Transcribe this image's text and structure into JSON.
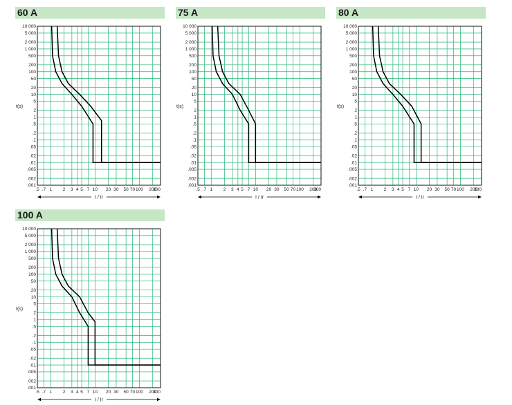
{
  "chart_data": [
    {
      "type": "line",
      "title": "60 A",
      "xlabel": "I / Ir",
      "ylabel": "t(s)",
      "x_scale": "log",
      "y_scale": "log",
      "xlim": [
        0.5,
        300
      ],
      "ylim": [
        0.001,
        10000
      ],
      "x_tick_labels": [
        ".5",
        ".7",
        "1",
        "2",
        "3",
        "4",
        "5",
        "7",
        "10",
        "20",
        "30",
        "50",
        "70",
        "100",
        "200",
        "300"
      ],
      "y_tick_labels": [
        "10 000",
        "5 000",
        "2 000",
        "1 000",
        "500",
        "200",
        "100",
        "50",
        "20",
        "10",
        "5",
        "2",
        "1",
        ".5",
        ".2",
        ".1",
        ".05",
        ".02",
        ".01",
        ".005",
        ".002",
        ".001"
      ],
      "grid": true,
      "series": [
        {
          "values": [
            [
              1.05,
              10000
            ],
            [
              1.1,
              500
            ],
            [
              1.3,
              100
            ],
            [
              1.8,
              30
            ],
            [
              3,
              10
            ],
            [
              5,
              3
            ],
            [
              9,
              0.5
            ],
            [
              9,
              0.01
            ],
            [
              300,
              0.01
            ]
          ]
        },
        {
          "values": [
            [
              1.4,
              10000
            ],
            [
              1.5,
              500
            ],
            [
              1.8,
              100
            ],
            [
              2.5,
              30
            ],
            [
              4.5,
              10
            ],
            [
              8,
              3
            ],
            [
              14,
              0.7
            ],
            [
              14,
              0.01
            ],
            [
              300,
              0.01
            ]
          ]
        }
      ]
    },
    {
      "type": "line",
      "title": "75 A",
      "xlabel": "I / Ir",
      "ylabel": "t(s)",
      "x_scale": "log",
      "y_scale": "log",
      "xlim": [
        0.5,
        300
      ],
      "ylim": [
        0.001,
        10000
      ],
      "x_tick_labels": [
        ".5",
        ".7",
        "1",
        "2",
        "3",
        "4",
        "5",
        "7",
        "10",
        "20",
        "30",
        "50",
        "70",
        "100",
        "200",
        "300"
      ],
      "y_tick_labels": [
        "10 000",
        "5 000",
        "2 000",
        "1 000",
        "500",
        "200",
        "100",
        "50",
        "20",
        "10",
        "5",
        "2",
        "1",
        ".5",
        ".2",
        ".1",
        ".05",
        ".02",
        ".01",
        ".005",
        ".002",
        ".001"
      ],
      "grid": true,
      "series": [
        {
          "values": [
            [
              1.05,
              10000
            ],
            [
              1.1,
              500
            ],
            [
              1.3,
              100
            ],
            [
              1.8,
              30
            ],
            [
              3,
              10
            ],
            [
              4.5,
              2
            ],
            [
              7,
              0.5
            ],
            [
              7,
              0.01
            ],
            [
              300,
              0.01
            ]
          ]
        },
        {
          "values": [
            [
              1.4,
              10000
            ],
            [
              1.5,
              500
            ],
            [
              1.8,
              100
            ],
            [
              2.5,
              30
            ],
            [
              4.5,
              10
            ],
            [
              7,
              2
            ],
            [
              10,
              0.5
            ],
            [
              10,
              0.01
            ],
            [
              300,
              0.01
            ]
          ]
        }
      ]
    },
    {
      "type": "line",
      "title": "80 A",
      "xlabel": "I / Ir",
      "ylabel": "t(s)",
      "x_scale": "log",
      "y_scale": "log",
      "xlim": [
        0.5,
        300
      ],
      "ylim": [
        0.001,
        10000
      ],
      "x_tick_labels": [
        ".5",
        ".7",
        "1",
        "2",
        "3",
        "4",
        "5",
        "7",
        "10",
        "20",
        "30",
        "50",
        "70",
        "100",
        "200",
        "300"
      ],
      "y_tick_labels": [
        "10 000",
        "5 000",
        "2 000",
        "1 000",
        "500",
        "200",
        "100",
        "50",
        "20",
        "10",
        "5",
        "2",
        "1",
        ".5",
        ".2",
        ".1",
        ".05",
        ".02",
        ".01",
        ".005",
        ".002",
        ".001"
      ],
      "grid": true,
      "series": [
        {
          "values": [
            [
              1.05,
              10000
            ],
            [
              1.1,
              500
            ],
            [
              1.3,
              100
            ],
            [
              1.8,
              30
            ],
            [
              3,
              10
            ],
            [
              5,
              3
            ],
            [
              9,
              0.5
            ],
            [
              9,
              0.01
            ],
            [
              300,
              0.01
            ]
          ]
        },
        {
          "values": [
            [
              1.4,
              10000
            ],
            [
              1.5,
              500
            ],
            [
              1.8,
              100
            ],
            [
              2.5,
              30
            ],
            [
              4.5,
              10
            ],
            [
              8,
              3
            ],
            [
              13,
              0.5
            ],
            [
              13,
              0.01
            ],
            [
              300,
              0.01
            ]
          ]
        }
      ]
    },
    {
      "type": "line",
      "title": "100 A",
      "xlabel": "I / Ir",
      "ylabel": "t(s)",
      "x_scale": "log",
      "y_scale": "log",
      "xlim": [
        0.5,
        300
      ],
      "ylim": [
        0.001,
        10000
      ],
      "x_tick_labels": [
        ".5",
        ".7",
        "1",
        "2",
        "3",
        "4",
        "5",
        "7",
        "10",
        "20",
        "30",
        "50",
        "70",
        "100",
        "200",
        "300"
      ],
      "y_tick_labels": [
        "10 000",
        "5 000",
        "2 000",
        "1 000",
        "500",
        "200",
        "100",
        "50",
        "20",
        "10",
        "5",
        "2",
        "1",
        ".5",
        ".2",
        ".1",
        ".05",
        ".02",
        ".01",
        ".005",
        ".002",
        ".001"
      ],
      "grid": true,
      "series": [
        {
          "values": [
            [
              1.05,
              10000
            ],
            [
              1.1,
              500
            ],
            [
              1.3,
              100
            ],
            [
              1.8,
              30
            ],
            [
              3,
              10
            ],
            [
              4.5,
              2
            ],
            [
              7,
              0.5
            ],
            [
              7,
              0.01
            ],
            [
              300,
              0.01
            ]
          ]
        },
        {
          "values": [
            [
              1.4,
              10000
            ],
            [
              1.5,
              500
            ],
            [
              1.8,
              100
            ],
            [
              2.5,
              30
            ],
            [
              4.5,
              10
            ],
            [
              7,
              2
            ],
            [
              10,
              0.8
            ],
            [
              10,
              0.01
            ],
            [
              300,
              0.01
            ]
          ]
        }
      ]
    }
  ],
  "colors": {
    "grid": "#22b573",
    "curve": "#000000",
    "header_bg": "#c6e6c6"
  }
}
